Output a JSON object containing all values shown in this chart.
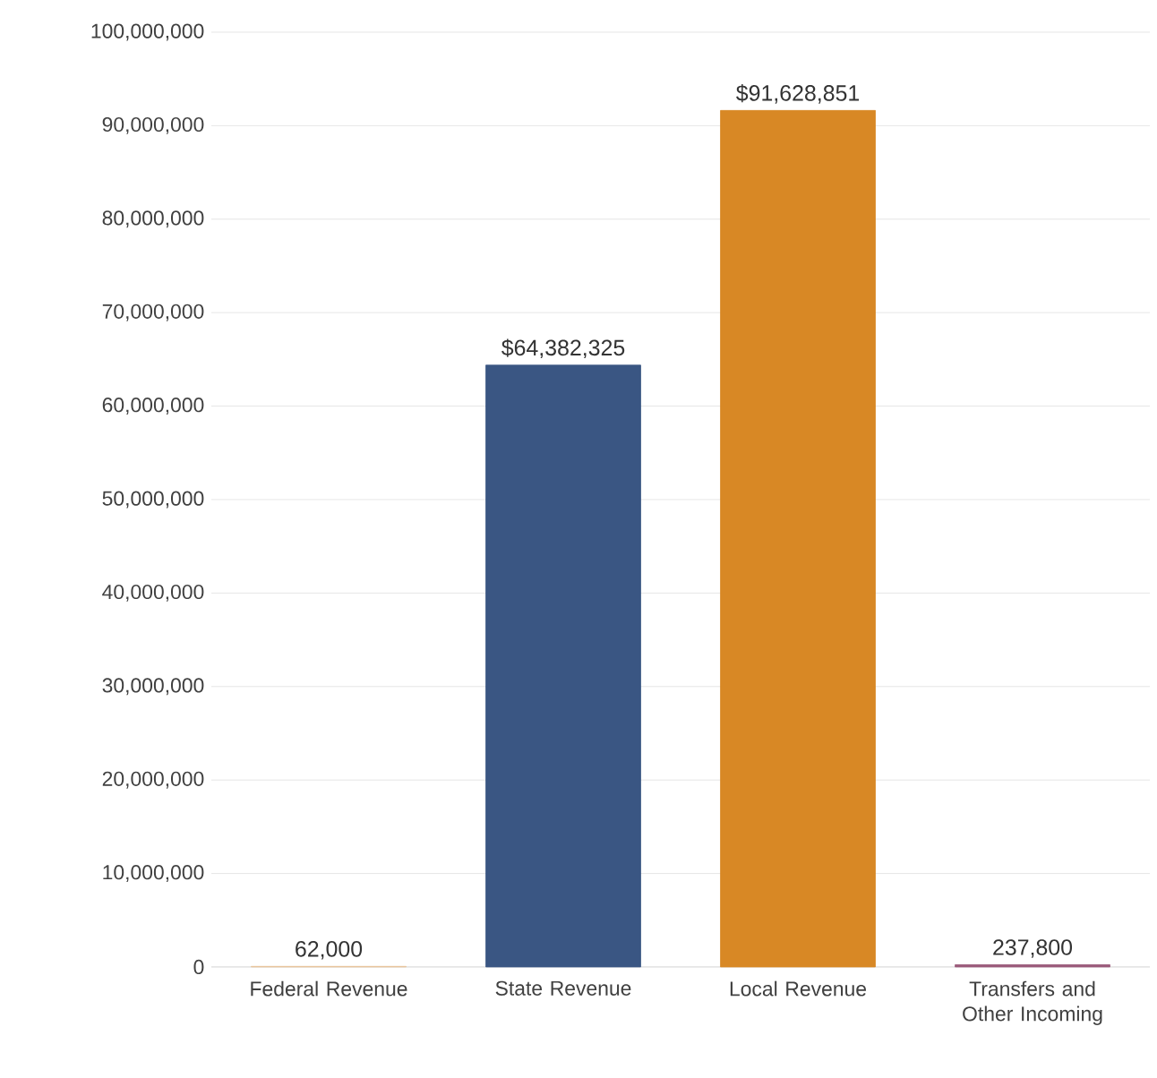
{
  "chart_data": {
    "type": "bar",
    "categories": [
      "Federal Revenue",
      "State Revenue",
      "Local Revenue",
      "Transfers and Other Incoming"
    ],
    "values": [
      62000,
      64382325,
      91628851,
      237800
    ],
    "colors": [
      "#e8c49a",
      "#3a5683",
      "#d88825",
      "#9a5a7a"
    ],
    "value_labels": [
      "62,000",
      "$64,382,325",
      "$91,628,851",
      "237,800"
    ],
    "ylim": [
      0,
      100000000
    ],
    "yticks": [
      {
        "value": 0,
        "label": "0"
      },
      {
        "value": 10000000,
        "label": "10,000,000"
      },
      {
        "value": 20000000,
        "label": "20,000,000"
      },
      {
        "value": 30000000,
        "label": "30,000,000"
      },
      {
        "value": 40000000,
        "label": "40,000,000"
      },
      {
        "value": 50000000,
        "label": "50,000,000"
      },
      {
        "value": 60000000,
        "label": "60,000,000"
      },
      {
        "value": 70000000,
        "label": "70,000,000"
      },
      {
        "value": 80000000,
        "label": "80,000,000"
      },
      {
        "value": 90000000,
        "label": "90,000,000"
      },
      {
        "value": 100000000,
        "label": "100,000,000"
      }
    ],
    "grid": "y"
  }
}
